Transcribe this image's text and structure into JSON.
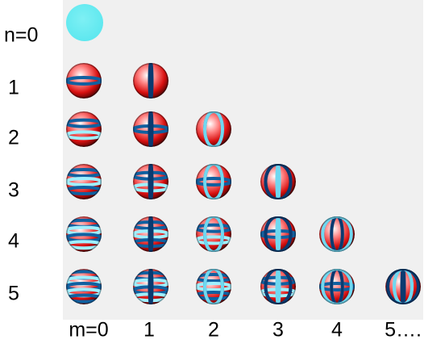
{
  "rows": [
    "n=0",
    "1",
    "2",
    "3",
    "4",
    "5"
  ],
  "columns": [
    "m=0",
    "1",
    "2",
    "3",
    "4",
    "5…."
  ]
}
